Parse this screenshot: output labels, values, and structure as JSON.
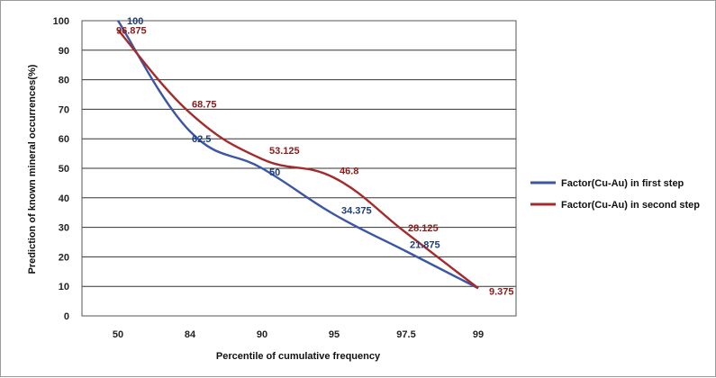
{
  "chart_data": {
    "type": "line",
    "categories": [
      "50",
      "84",
      "90",
      "95",
      "97.5",
      "99"
    ],
    "series": [
      {
        "name": "Factor(Cu-Au) in first step",
        "color": "#3a56a5",
        "values": [
          100,
          62.5,
          50,
          34.375,
          21.875,
          9.375
        ],
        "labels": [
          "100",
          "62.5",
          "50",
          "34.375",
          "21.875",
          "9.375"
        ]
      },
      {
        "name": "Factor(Cu-Au) in second step",
        "color": "#a52a2a",
        "values": [
          96.875,
          68.75,
          53.125,
          46.8,
          28.125,
          9.375
        ],
        "labels": [
          "96.875",
          "68.75",
          "53.125",
          "46.8",
          "28.125",
          "9.375"
        ]
      }
    ],
    "xlabel": "Percentile of cumulative frequency",
    "ylabel": "Prediction of known mineral occurrences(%)",
    "yticks": [
      "0",
      "10",
      "20",
      "30",
      "40",
      "50",
      "60",
      "70",
      "80",
      "90",
      "100"
    ],
    "ylim": [
      0,
      100
    ],
    "grid": "horizontal",
    "smooth": true,
    "legend_position": "right"
  }
}
